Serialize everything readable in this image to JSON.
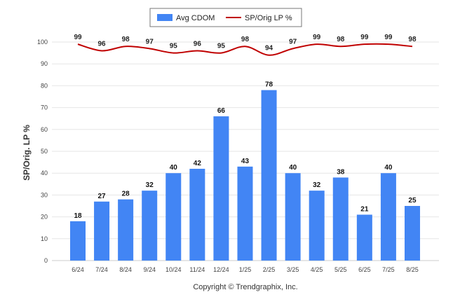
{
  "chart_data": {
    "type": "bar",
    "categories": [
      "6/24",
      "7/24",
      "8/24",
      "9/24",
      "10/24",
      "11/24",
      "12/24",
      "1/25",
      "2/25",
      "3/25",
      "4/25",
      "5/25",
      "6/25",
      "7/25",
      "8/25"
    ],
    "series": [
      {
        "name": "Avg CDOM",
        "type": "bar",
        "color": "#4285f4",
        "values": [
          18,
          27,
          28,
          32,
          40,
          42,
          66,
          43,
          78,
          40,
          32,
          38,
          21,
          40,
          25
        ]
      },
      {
        "name": "SP/Orig LP %",
        "type": "line",
        "color": "#c00000",
        "values": [
          99,
          96,
          98,
          97,
          95,
          96,
          95,
          98,
          94,
          97,
          99,
          98,
          99,
          99,
          98
        ]
      }
    ],
    "ylabel": "SP/Orig. LP %",
    "xlabel": "",
    "ylim": [
      0,
      100
    ],
    "yticks": [
      0,
      10,
      20,
      30,
      40,
      50,
      60,
      70,
      80,
      90,
      100
    ],
    "grid": true,
    "legend": "top-center"
  },
  "footer": "Copyright © Trendgraphix, Inc."
}
